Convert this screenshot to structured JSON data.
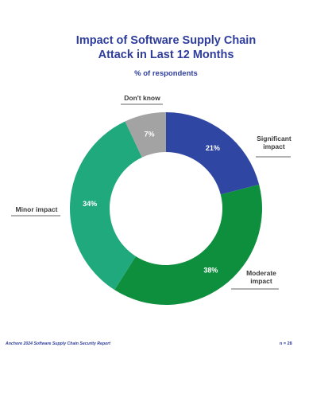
{
  "header": {
    "title_line1": "Impact of Software Supply Chain",
    "title_line2": "Attack in Last 12 Months",
    "subtitle": "% of respondents"
  },
  "chart_data": {
    "type": "pie",
    "style": "donut",
    "title": "Impact of Software Supply Chain Attack in Last 12 Months",
    "subtitle": "% of respondents",
    "slices": [
      {
        "label": "Significant impact",
        "display_label": [
          "Significant",
          "impact"
        ],
        "value": 21,
        "value_label": "21%",
        "color": "#2f47a2"
      },
      {
        "label": "Moderate impact",
        "display_label": [
          "Moderate",
          "impact"
        ],
        "value": 38,
        "value_label": "38%",
        "color": "#0e8f3e"
      },
      {
        "label": "Minor impact",
        "display_label": [
          "Minor impact"
        ],
        "value": 34,
        "value_label": "34%",
        "color": "#1fa97c"
      },
      {
        "label": "Don't know",
        "display_label": [
          "Don't know"
        ],
        "value": 7,
        "value_label": "7%",
        "color": "#a3a3a3"
      }
    ],
    "start": "12 o'clock",
    "direction": "clockwise",
    "legend": "none (callout labels)"
  },
  "footer": {
    "source": "Anchore 2024 Software Supply Chain Security Report",
    "n": "n = 28"
  }
}
